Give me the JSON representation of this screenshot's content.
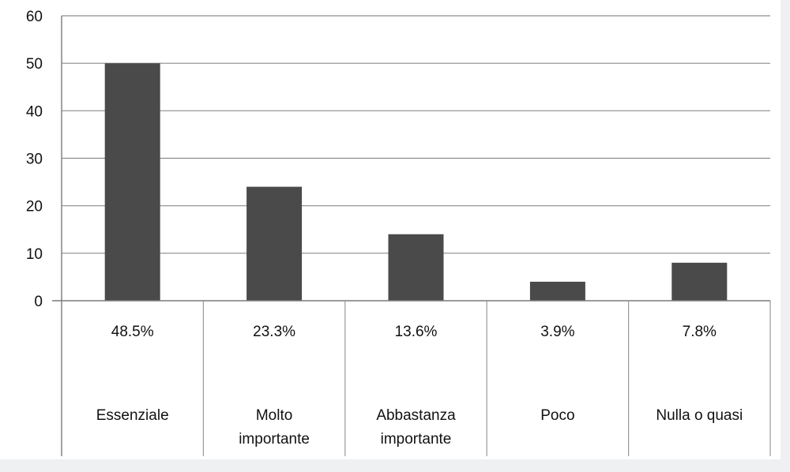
{
  "chart_data": {
    "type": "bar",
    "title": "",
    "xlabel": "",
    "ylabel": "",
    "ylim": [
      0,
      60
    ],
    "yticks": [
      0,
      10,
      20,
      30,
      40,
      50,
      60
    ],
    "grid": true,
    "legend": "none",
    "categories": [
      [
        "Essenziale"
      ],
      [
        "Molto",
        "importante"
      ],
      [
        "Abbastanza",
        "importante"
      ],
      [
        "Poco"
      ],
      [
        "Nulla o quasi"
      ]
    ],
    "values": [
      50,
      24,
      14,
      4,
      8
    ],
    "data_labels": [
      "48.5%",
      "23.3%",
      "13.6%",
      "3.9%",
      "7.8%"
    ],
    "colors": {
      "bar": "#4a4a4a",
      "grid": "#8c8c8c",
      "axis": "#7a7a7a",
      "table_border": "#9a9a9a"
    }
  }
}
